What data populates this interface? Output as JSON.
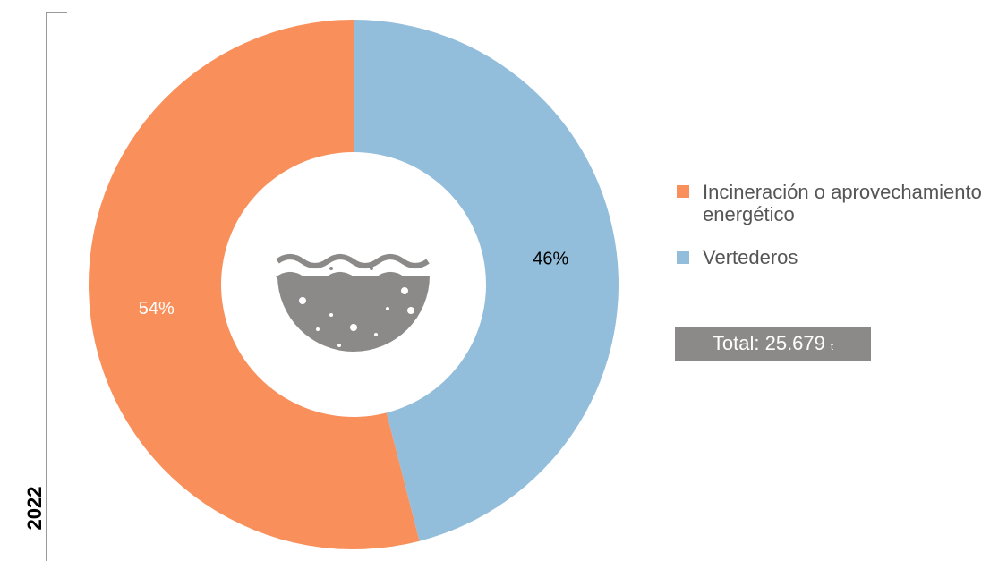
{
  "chart_data": {
    "type": "pie",
    "donut": true,
    "side_label": "2022",
    "categories": [
      "Incineración o aprovechamiento energético",
      "Vertederos"
    ],
    "values": [
      54,
      46
    ],
    "value_labels": [
      "54%",
      "46%"
    ],
    "colors": [
      "#f98f5a",
      "#93bedb"
    ],
    "label_colors": [
      "#ffffff",
      "#000000"
    ],
    "total_label": "Total: 25.679",
    "total_unit": "t"
  }
}
